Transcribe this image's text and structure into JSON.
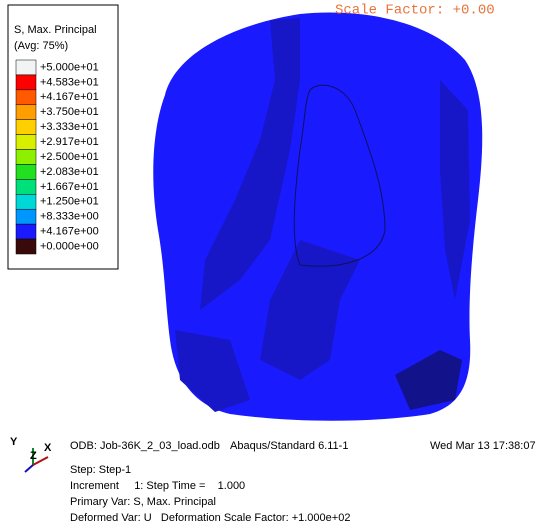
{
  "legend": {
    "title": "S, Max. Principal",
    "subtitle": "(Avg: 75%)",
    "entries": [
      {
        "label": "+5.000e+01",
        "color": "#f0f4f4"
      },
      {
        "label": "+4.583e+01",
        "color": "#ff0000"
      },
      {
        "label": "+4.167e+01",
        "color": "#ff5a00"
      },
      {
        "label": "+3.750e+01",
        "color": "#ff9e00"
      },
      {
        "label": "+3.333e+01",
        "color": "#ffd000"
      },
      {
        "label": "+2.917e+01",
        "color": "#d8f000"
      },
      {
        "label": "+2.500e+01",
        "color": "#8cf000"
      },
      {
        "label": "+2.083e+01",
        "color": "#20e020"
      },
      {
        "label": "+1.667e+01",
        "color": "#00e07a"
      },
      {
        "label": "+1.250e+01",
        "color": "#00d8d8"
      },
      {
        "label": "+8.333e+00",
        "color": "#0096ff"
      },
      {
        "label": "+4.167e+00",
        "color": "#1a1aff"
      },
      {
        "label": "+0.000e+00",
        "color": "#3a0a0a"
      }
    ]
  },
  "header": {
    "scale_factor": "Scale Factor: +0.00"
  },
  "triad": {
    "y": "Y",
    "z": "Z",
    "x": "X"
  },
  "info": {
    "odb": "ODB: Job-36K_2_03_load.odb",
    "solver": "Abaqus/Standard 6.11-1",
    "date": "Wed Mar 13 17:38:07",
    "step": "Step: Step-1",
    "increment": "Increment     1: Step Time =    1.000",
    "primary": "Primary Var: S, Max. Principal",
    "deformed": "Deformed Var: U   Deformation Scale Factor: +1.000e+02"
  }
}
